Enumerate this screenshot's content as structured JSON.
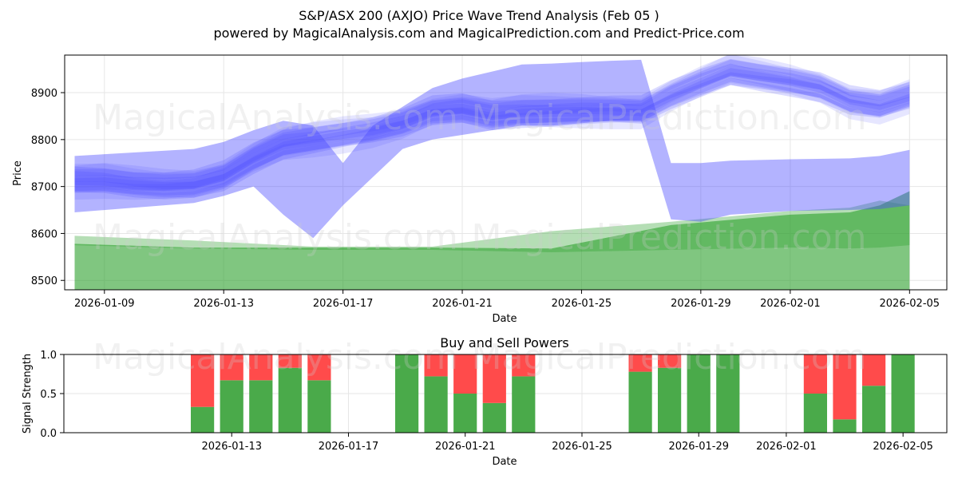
{
  "header": {
    "title": "S&P/ASX 200 (AXJO) Price Wave Trend Analysis (Feb 05 )",
    "subtitle": "powered by MagicalAnalysis.com and MagicalPrediction.com and Predict-Price.com"
  },
  "watermarks": [
    "MagicalAnalysis.com",
    "MagicalPrediction.com"
  ],
  "colors": {
    "blue": "#4b4bff",
    "green": "#2ca02c",
    "buy": "#4aaa4a",
    "sell": "#ff4b4b",
    "grid": "#e6e6e6"
  },
  "chart_data": [
    {
      "type": "area",
      "xlabel": "Date",
      "ylabel": "Price",
      "xlim": [
        "2026-01-07T16:00",
        "2026-02-06T06:00"
      ],
      "ylim": [
        8480,
        8980
      ],
      "grid": true,
      "x_ticks": [
        "2026-01-09",
        "2026-01-13",
        "2026-01-17",
        "2026-01-21",
        "2026-01-25",
        "2026-01-29",
        "2026-02-01",
        "2026-02-05"
      ],
      "y_ticks": [
        8500,
        8600,
        8700,
        8800,
        8900
      ],
      "blue_wave_center": {
        "dates": [
          "2026-01-08",
          "2026-01-09",
          "2026-01-10",
          "2026-01-11",
          "2026-01-12",
          "2026-01-13",
          "2026-01-14",
          "2026-01-15",
          "2026-01-16",
          "2026-01-17",
          "2026-01-18",
          "2026-01-19",
          "2026-01-20",
          "2026-01-21",
          "2026-01-22",
          "2026-01-23",
          "2026-01-24",
          "2026-01-25",
          "2026-01-26",
          "2026-01-27",
          "2026-01-28",
          "2026-01-29",
          "2026-01-30",
          "2026-01-31",
          "2026-02-01",
          "2026-02-02",
          "2026-02-03",
          "2026-02-04",
          "2026-02-05"
        ],
        "values": [
          8712,
          8712,
          8705,
          8702,
          8705,
          8722,
          8760,
          8790,
          8800,
          8810,
          8820,
          8835,
          8860,
          8865,
          8852,
          8858,
          8860,
          8862,
          8862,
          8860,
          8893,
          8920,
          8945,
          8935,
          8925,
          8912,
          8882,
          8872,
          8892
        ]
      },
      "blue_wide_band": {
        "dates": [
          "2026-01-08",
          "2026-01-12",
          "2026-01-13",
          "2026-01-14",
          "2026-01-15",
          "2026-01-16",
          "2026-01-17",
          "2026-01-18",
          "2026-01-19",
          "2026-01-20",
          "2026-01-21",
          "2026-01-22",
          "2026-01-23",
          "2026-01-24",
          "2026-01-25",
          "2026-01-26",
          "2026-01-27",
          "2026-01-28",
          "2026-01-29",
          "2026-01-30",
          "2026-02-01",
          "2026-02-03",
          "2026-02-04",
          "2026-02-05"
        ],
        "upper": [
          8765,
          8780,
          8795,
          8820,
          8840,
          8830,
          8750,
          8830,
          8870,
          8910,
          8930,
          8945,
          8960,
          8962,
          8965,
          8968,
          8970,
          8750,
          8750,
          8755,
          8758,
          8760,
          8765,
          8778
        ],
        "lower": [
          8645,
          8665,
          8680,
          8700,
          8640,
          8590,
          8660,
          8720,
          8780,
          8800,
          8810,
          8820,
          8830,
          8830,
          8835,
          8840,
          8840,
          8630,
          8625,
          8640,
          8648,
          8650,
          8652,
          8660
        ]
      },
      "green_band_dark": {
        "dates": [
          "2026-01-08",
          "2026-01-12",
          "2026-01-16",
          "2026-01-20",
          "2026-01-24",
          "2026-01-28",
          "2026-02-01",
          "2026-02-03",
          "2026-02-04",
          "2026-02-05"
        ],
        "upper": [
          8578,
          8570,
          8570,
          8570,
          8568,
          8618,
          8640,
          8645,
          8660,
          8690
        ],
        "lower": [
          8478,
          8478,
          8478,
          8478,
          8478,
          8478,
          8478,
          8478,
          8478,
          8478
        ]
      },
      "green_band_light": {
        "dates": [
          "2026-01-08",
          "2026-01-12",
          "2026-01-16",
          "2026-01-20",
          "2026-01-24",
          "2026-01-28",
          "2026-02-01",
          "2026-02-03",
          "2026-02-04",
          "2026-02-05"
        ],
        "upper": [
          8595,
          8585,
          8572,
          8572,
          8605,
          8625,
          8648,
          8655,
          8670,
          8660
        ],
        "lower": [
          8575,
          8568,
          8565,
          8565,
          8560,
          8565,
          8570,
          8568,
          8570,
          8575
        ]
      }
    },
    {
      "type": "bar",
      "title": "Buy and Sell Powers",
      "xlabel": "Date",
      "ylabel": "Signal Strength",
      "ylim": [
        0,
        1
      ],
      "y_ticks": [
        "0.0",
        "0.5",
        "1.0"
      ],
      "x_ticks": [
        "2026-01-13",
        "2026-01-17",
        "2026-01-21",
        "2026-01-25",
        "2026-01-29",
        "2026-02-01",
        "2026-02-05"
      ],
      "series": [
        {
          "name": "Buy",
          "dates": [
            "2026-01-12",
            "2026-01-13",
            "2026-01-14",
            "2026-01-15",
            "2026-01-16",
            "2026-01-19",
            "2026-01-20",
            "2026-01-21",
            "2026-01-22",
            "2026-01-23",
            "2026-01-27",
            "2026-01-28",
            "2026-01-29",
            "2026-01-30",
            "2026-02-02",
            "2026-02-03",
            "2026-02-04",
            "2026-02-05"
          ],
          "values": [
            0.33,
            0.67,
            0.67,
            0.83,
            0.67,
            1.0,
            0.72,
            0.5,
            0.38,
            0.72,
            0.78,
            0.83,
            1.0,
            1.0,
            0.5,
            0.17,
            0.6,
            1.0
          ]
        },
        {
          "name": "Sell",
          "dates": [
            "2026-01-12",
            "2026-01-13",
            "2026-01-14",
            "2026-01-15",
            "2026-01-16",
            "2026-01-19",
            "2026-01-20",
            "2026-01-21",
            "2026-01-22",
            "2026-01-23",
            "2026-01-27",
            "2026-01-28",
            "2026-01-29",
            "2026-01-30",
            "2026-02-02",
            "2026-02-03",
            "2026-02-04",
            "2026-02-05"
          ],
          "values": [
            0.67,
            0.33,
            0.33,
            0.17,
            0.33,
            0.0,
            0.28,
            0.5,
            0.62,
            0.28,
            0.22,
            0.17,
            0.0,
            0.0,
            0.5,
            0.83,
            0.4,
            0.0
          ]
        }
      ]
    }
  ]
}
